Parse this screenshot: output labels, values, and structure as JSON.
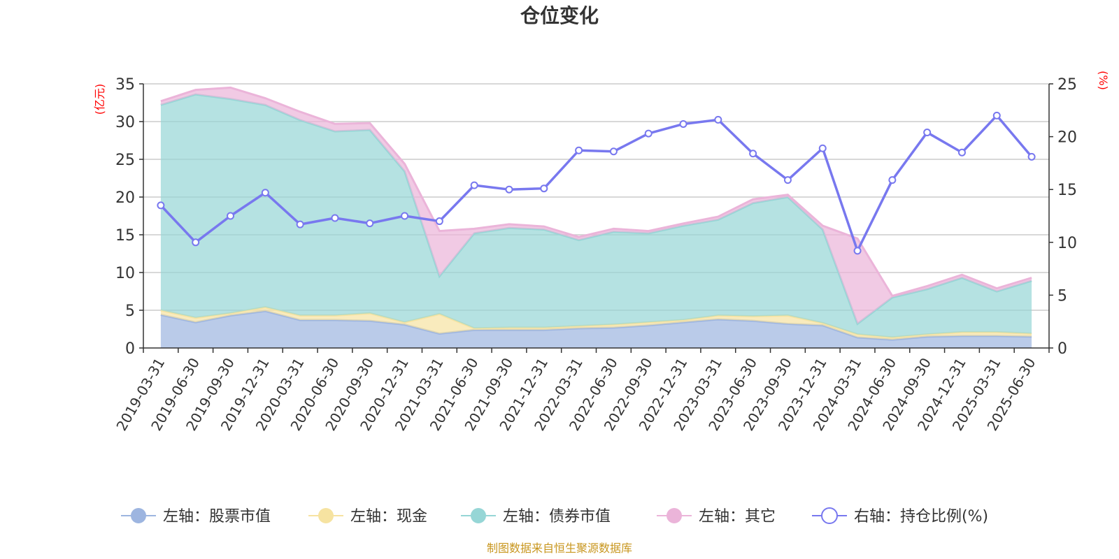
{
  "chart_data": {
    "type": "area",
    "title": "仓位变化",
    "left_unit": "(亿元)",
    "right_unit": "(%)",
    "source": "制图数据来自恒生聚源数据库",
    "ylim_left": [
      0,
      35
    ],
    "yticks_left": [
      0,
      5,
      10,
      15,
      20,
      25,
      30,
      35
    ],
    "ylim_right": [
      0,
      25
    ],
    "yticks_right": [
      0,
      5,
      10,
      15,
      20,
      25
    ],
    "grid": true,
    "legend_position": "bottom",
    "categories": [
      "2019-03-31",
      "2019-06-30",
      "2019-09-30",
      "2019-12-31",
      "2020-03-31",
      "2020-06-30",
      "2020-09-30",
      "2020-12-31",
      "2021-03-31",
      "2021-06-30",
      "2021-09-30",
      "2021-12-31",
      "2022-03-31",
      "2022-06-30",
      "2022-09-30",
      "2022-12-31",
      "2023-03-31",
      "2023-06-30",
      "2023-09-30",
      "2023-12-31",
      "2024-03-31",
      "2024-06-30",
      "2024-09-30",
      "2024-12-31",
      "2025-03-31",
      "2025-06-30"
    ],
    "stacked_series": [
      {
        "name": "左轴：股票市值",
        "axis": "left",
        "color": "#9db5e0",
        "values": [
          4.4,
          3.4,
          4.3,
          4.9,
          3.7,
          3.7,
          3.6,
          3.1,
          1.9,
          2.4,
          2.4,
          2.4,
          2.6,
          2.7,
          3.0,
          3.4,
          3.8,
          3.6,
          3.2,
          3.0,
          1.4,
          1.1,
          1.5,
          1.6,
          1.6,
          1.5
        ]
      },
      {
        "name": "左轴：现金",
        "axis": "left",
        "color": "#f6e3a1",
        "values": [
          0.6,
          0.6,
          0.3,
          0.5,
          0.6,
          0.6,
          1.0,
          0.3,
          2.6,
          0.2,
          0.3,
          0.3,
          0.3,
          0.4,
          0.4,
          0.3,
          0.5,
          0.6,
          1.1,
          0.3,
          0.4,
          0.3,
          0.3,
          0.5,
          0.5,
          0.4
        ]
      },
      {
        "name": "左轴：债券市值",
        "axis": "left",
        "color": "#96d6d6",
        "values": [
          27.2,
          29.6,
          28.4,
          26.8,
          25.9,
          24.4,
          24.3,
          20.0,
          5.0,
          12.6,
          13.2,
          13.0,
          11.4,
          12.3,
          11.8,
          12.5,
          12.7,
          15.0,
          15.7,
          12.4,
          1.4,
          5.3,
          6.0,
          7.2,
          5.4,
          7.0
        ]
      },
      {
        "name": "左轴：其它",
        "axis": "left",
        "color": "#ebb4d9",
        "values": [
          0.5,
          0.6,
          1.5,
          0.9,
          1.1,
          1.0,
          0.9,
          1.0,
          6.0,
          0.6,
          0.5,
          0.4,
          0.4,
          0.4,
          0.3,
          0.3,
          0.4,
          0.5,
          0.3,
          0.5,
          11.3,
          0.2,
          0.4,
          0.4,
          0.4,
          0.4
        ]
      }
    ],
    "line_series": {
      "name": "右轴：持仓比例(%)",
      "axis": "right",
      "color": "#7878ef",
      "values": [
        13.5,
        10.0,
        12.5,
        14.7,
        11.7,
        12.3,
        11.8,
        12.5,
        12.0,
        15.4,
        15.0,
        15.1,
        18.7,
        18.6,
        20.3,
        21.2,
        21.6,
        18.4,
        15.9,
        18.9,
        9.2,
        15.9,
        20.4,
        18.5,
        22.0,
        18.1
      ]
    }
  }
}
